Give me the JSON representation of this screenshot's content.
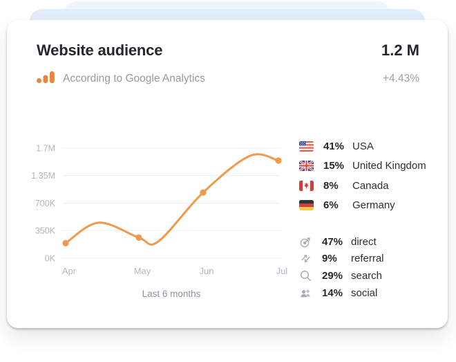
{
  "colors": {
    "accent_orange": "#F0984B",
    "ga_icon_orange": "#E8873C",
    "stack_card_back": "#EFF5FD",
    "stack_card_middle": "#E2EDFA",
    "card_background": "#FFFFFF",
    "text_dark": "#24272C",
    "text_gray": "#949AA3",
    "axis_gray": "#B2B7BE",
    "gridline": "#EEEFF1",
    "source_icon_gray": "#A7ACB3"
  },
  "card": {
    "title": "Website audience",
    "value": "1.2 M",
    "source_label": "According to Google Analytics",
    "change": "+4.43%"
  },
  "chart_data": {
    "type": "line",
    "title": "Website audience over last 6 months",
    "x": [
      "Apr",
      "May",
      "Jun",
      "Jul"
    ],
    "values": [
      190000,
      260000,
      950000,
      1540000
    ],
    "y_axis": {
      "tick_labels": [
        "0K",
        "350K",
        "700K",
        "1.35M",
        "1.7M"
      ],
      "tick_values": [
        0,
        350000,
        700000,
        1350000,
        1700000
      ]
    },
    "ylim": [
      0,
      1700000
    ],
    "grid": true,
    "legend_position": "none",
    "caption": "Last 6 months",
    "line_color": "#F0984B",
    "curve_waypoints": [
      [
        0,
        190000
      ],
      [
        0.45,
        450000
      ],
      [
        1,
        260000
      ],
      [
        1.3,
        210000
      ],
      [
        2,
        950000
      ],
      [
        2.62,
        1600000
      ],
      [
        3,
        1540000
      ]
    ]
  },
  "countries": [
    {
      "flag": "usa-flag-icon",
      "percent": "41%",
      "label": "USA"
    },
    {
      "flag": "uk-flag-icon",
      "percent": "15%",
      "label": "United Kingdom"
    },
    {
      "flag": "canada-flag-icon",
      "percent": "8%",
      "label": "Canada"
    },
    {
      "flag": "germany-flag-icon",
      "percent": "6%",
      "label": "Germany"
    }
  ],
  "sources": [
    {
      "icon": "target-icon",
      "percent": "47%",
      "label": "direct"
    },
    {
      "icon": "referral-arrows-icon",
      "percent": "9%",
      "label": "referral"
    },
    {
      "icon": "search-icon",
      "percent": "29%",
      "label": "search"
    },
    {
      "icon": "social-users-icon",
      "percent": "14%",
      "label": "social"
    }
  ]
}
